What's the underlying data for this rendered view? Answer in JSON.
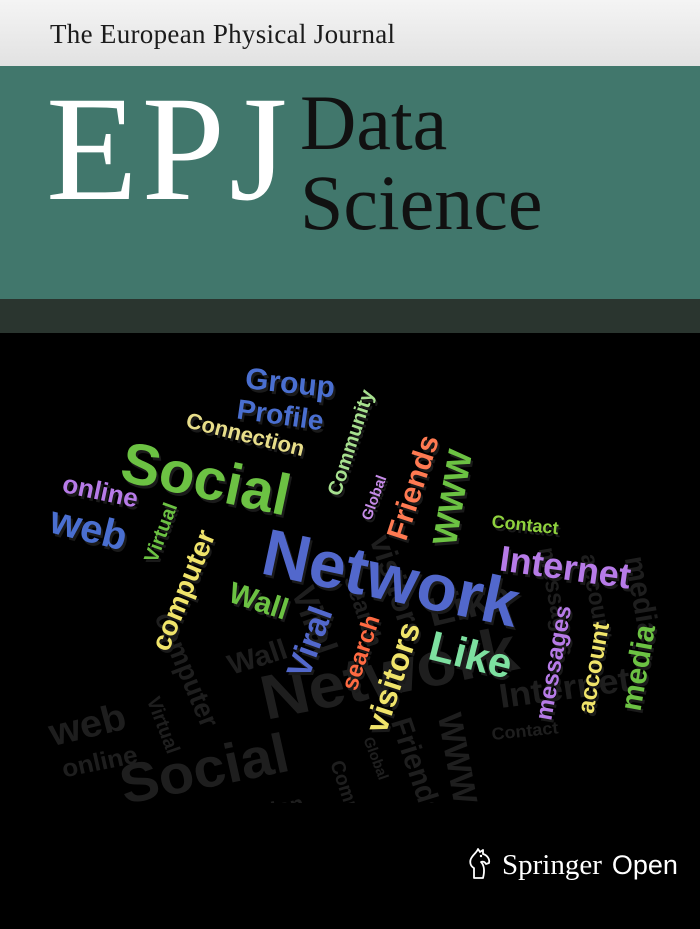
{
  "journal": {
    "name": "The European Physical Journal",
    "acronym": "EPJ",
    "title_line1": "Data",
    "title_line2": "Science"
  },
  "colors": {
    "top_band": "#ececec",
    "teal": "#41776c",
    "dark_band": "#2a352f",
    "background": "#000000"
  },
  "word_cloud": {
    "words": [
      {
        "text": "Group",
        "color": "#4a6fd0"
      },
      {
        "text": "Profile",
        "color": "#4a6fd0"
      },
      {
        "text": "Connection",
        "color": "#e8de8a"
      },
      {
        "text": "Community",
        "color": "#a7e08f"
      },
      {
        "text": "Social",
        "color": "#6cc243"
      },
      {
        "text": "Global",
        "color": "#c68be8"
      },
      {
        "text": "Friends",
        "color": "#ff7a52"
      },
      {
        "text": "WWW",
        "color": "#6cc243"
      },
      {
        "text": "online",
        "color": "#b77be8"
      },
      {
        "text": "web",
        "color": "#4a6fd0"
      },
      {
        "text": "Virtual",
        "color": "#6cc243"
      },
      {
        "text": "Contact",
        "color": "#8fd23e"
      },
      {
        "text": "Internet",
        "color": "#b77be8"
      },
      {
        "text": "Network",
        "color": "#5268cc"
      },
      {
        "text": "computer",
        "color": "#f0e46a"
      },
      {
        "text": "Wall",
        "color": "#6cc243"
      },
      {
        "text": "Viral",
        "color": "#5268cc"
      },
      {
        "text": "search",
        "color": "#ff6a42"
      },
      {
        "text": "visitors",
        "color": "#f0e46a"
      },
      {
        "text": "Like",
        "color": "#7de0a0"
      },
      {
        "text": "messages",
        "color": "#b77be8"
      },
      {
        "text": "account",
        "color": "#f0e46a"
      },
      {
        "text": "media",
        "color": "#6cc243"
      }
    ]
  },
  "publisher": {
    "name": "Springer",
    "label": "Open"
  }
}
